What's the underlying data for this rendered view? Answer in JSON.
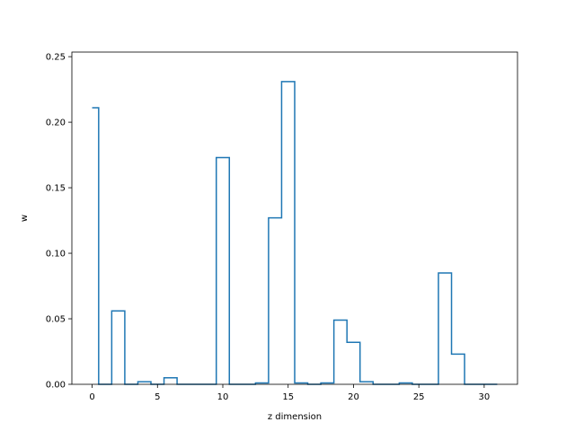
{
  "chart_data": {
    "type": "step",
    "title": "",
    "xlabel": "z dimension",
    "ylabel": "w",
    "xlim": [
      -1.55,
      32.55
    ],
    "ylim": [
      0.0,
      0.2535
    ],
    "xticks": [
      0,
      5,
      10,
      15,
      20,
      25,
      30
    ],
    "yticks": [
      0.0,
      0.05,
      0.1,
      0.15,
      0.2,
      0.25
    ],
    "ytick_labels": [
      "0.00",
      "0.05",
      "0.10",
      "0.15",
      "0.20",
      "0.25"
    ],
    "grid": false,
    "line_color": "#1f77b4",
    "x": [
      0,
      1,
      2,
      3,
      4,
      5,
      6,
      7,
      8,
      9,
      10,
      11,
      12,
      13,
      14,
      15,
      16,
      17,
      18,
      19,
      20,
      21,
      22,
      23,
      24,
      25,
      26,
      27,
      28,
      29,
      30,
      31
    ],
    "values": [
      0.211,
      0.0,
      0.056,
      0.0,
      0.002,
      0.0,
      0.005,
      0.0,
      0.0,
      0.0,
      0.173,
      0.0,
      0.0,
      0.001,
      0.127,
      0.231,
      0.001,
      0.0,
      0.001,
      0.049,
      0.032,
      0.002,
      0.0,
      0.0,
      0.001,
      0.0,
      0.0,
      0.085,
      0.023,
      0.0,
      0.0,
      0.0
    ]
  }
}
